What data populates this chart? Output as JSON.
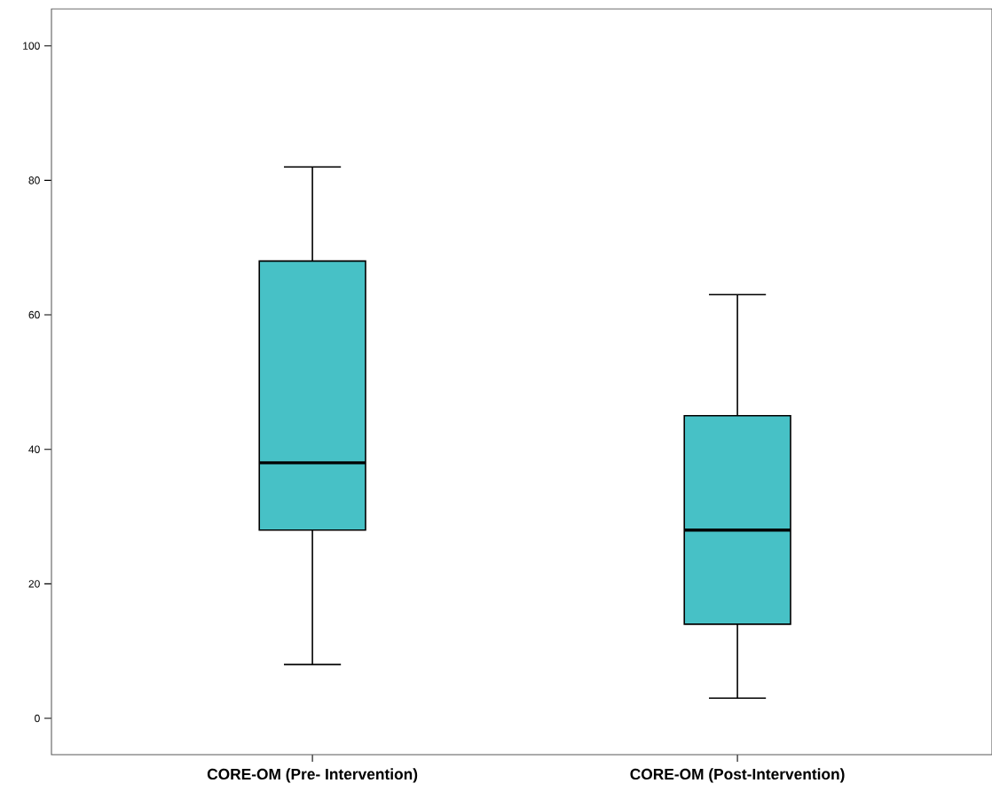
{
  "chart_data": {
    "type": "box",
    "categories": [
      "CORE-OM (Pre- Intervention)",
      "CORE-OM (Post-Intervention)"
    ],
    "boxes": [
      {
        "low": 8,
        "q1": 28,
        "median": 38,
        "q3": 68,
        "high": 82
      },
      {
        "low": 3,
        "q1": 14,
        "median": 28,
        "q3": 45,
        "high": 63
      }
    ],
    "color": "#47c1c6",
    "ylim": [
      -5.4,
      105.5
    ],
    "yticks": [
      0,
      20,
      40,
      60,
      80,
      100
    ]
  }
}
